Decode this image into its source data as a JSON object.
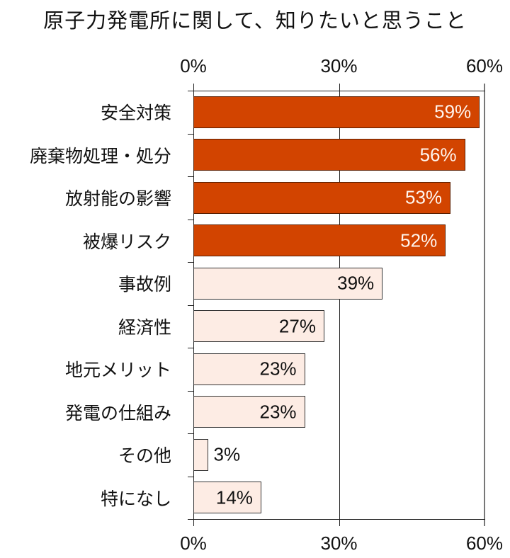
{
  "chart_data": {
    "type": "bar",
    "orientation": "horizontal",
    "title": "原子力発電所に関して、知りたいと思うこと",
    "xlabel": "",
    "ylabel": "",
    "xlim": [
      0,
      60
    ],
    "x_ticks": [
      "0%",
      "30%",
      "60%"
    ],
    "x_tick_values": [
      0,
      30,
      60
    ],
    "grid": true,
    "legend": null,
    "categories": [
      "安全対策",
      "廃棄物処理・処分",
      "放射能の影響",
      "被爆リスク",
      "事故例",
      "経済性",
      "地元メリット",
      "発電の仕組み",
      "その他",
      "特になし"
    ],
    "values": [
      59,
      56,
      53,
      52,
      39,
      27,
      23,
      23,
      3,
      14
    ],
    "value_labels": [
      "59%",
      "56%",
      "53%",
      "52%",
      "39%",
      "27%",
      "23%",
      "23%",
      "3%",
      "14%"
    ],
    "highlight": [
      true,
      true,
      true,
      true,
      false,
      false,
      false,
      false,
      false,
      false
    ],
    "colors": {
      "highlight": "#d24400",
      "normal": "#fdece4",
      "highlight_text": "#fff5ee",
      "normal_text": "#111111"
    }
  }
}
